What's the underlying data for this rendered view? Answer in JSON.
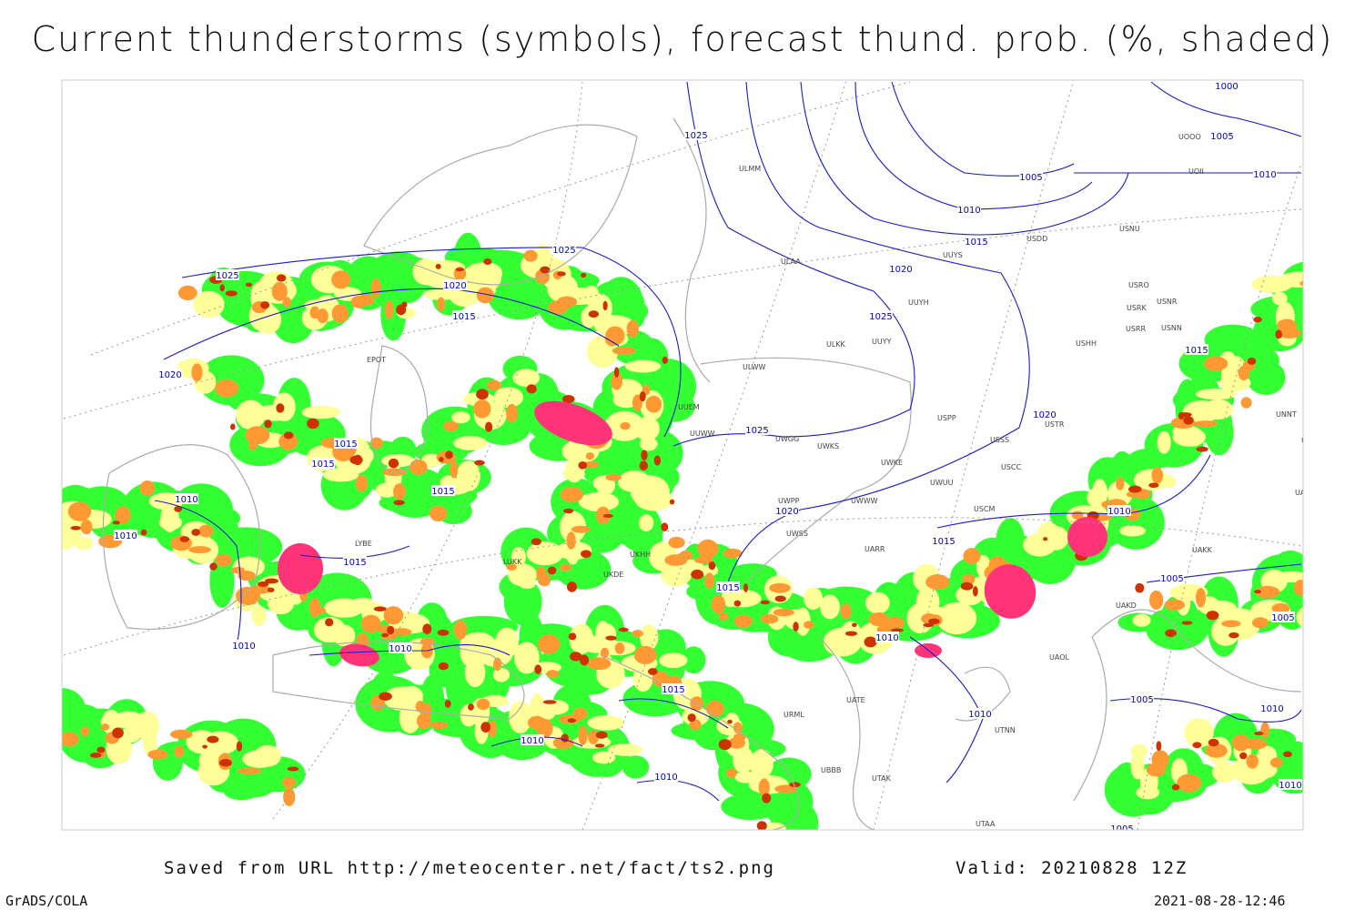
{
  "title": "Current thunderstorms (symbols), forecast thund. prob. (%, shaded)",
  "isobar_labels": [
    "1025",
    "1025",
    "1025",
    "1020",
    "1015",
    "1020",
    "1015",
    "1015",
    "1015",
    "1010",
    "1010",
    "1015",
    "1010",
    "1010",
    "1010",
    "1010",
    "1015",
    "1015",
    "1020",
    "1025",
    "1025",
    "1020",
    "1015",
    "1010",
    "1005",
    "1000",
    "1005",
    "1010",
    "1015",
    "1020",
    "1015",
    "1010",
    "1005",
    "1005",
    "1010",
    "1010",
    "1005",
    "1010",
    "1010",
    "1005"
  ],
  "station_codes": [
    "ULMM",
    "ULAA",
    "UUYS",
    "UUYH",
    "ULKK",
    "UUYY",
    "ULWW",
    "UUEM",
    "UUWW",
    "UWGG",
    "UWKS",
    "USSS",
    "USCC",
    "USTR",
    "USPP",
    "UWKE",
    "UWUU",
    "UWPP",
    "UWWW",
    "UWSS",
    "UARR",
    "USCM",
    "USHH",
    "USRR",
    "USRK",
    "USNR",
    "USNN",
    "USRO",
    "USNU",
    "UOOO",
    "UOII",
    "USDD",
    "UNNT",
    "UNBB",
    "UASP",
    "UAKK",
    "UAKD",
    "UAOL",
    "UTNN",
    "UTAK",
    "UTAA",
    "UBBB",
    "URML",
    "UATE",
    "UKDE",
    "UKHH",
    "LYBE",
    "LUKK",
    "EPOT"
  ],
  "footer": {
    "source": "Saved from URL http://meteocenter.net/fact/ts2.png",
    "valid": "Valid: 20210828 12Z",
    "software": "GrADS/COLA",
    "timestamp": "2021-08-28-12:46"
  }
}
